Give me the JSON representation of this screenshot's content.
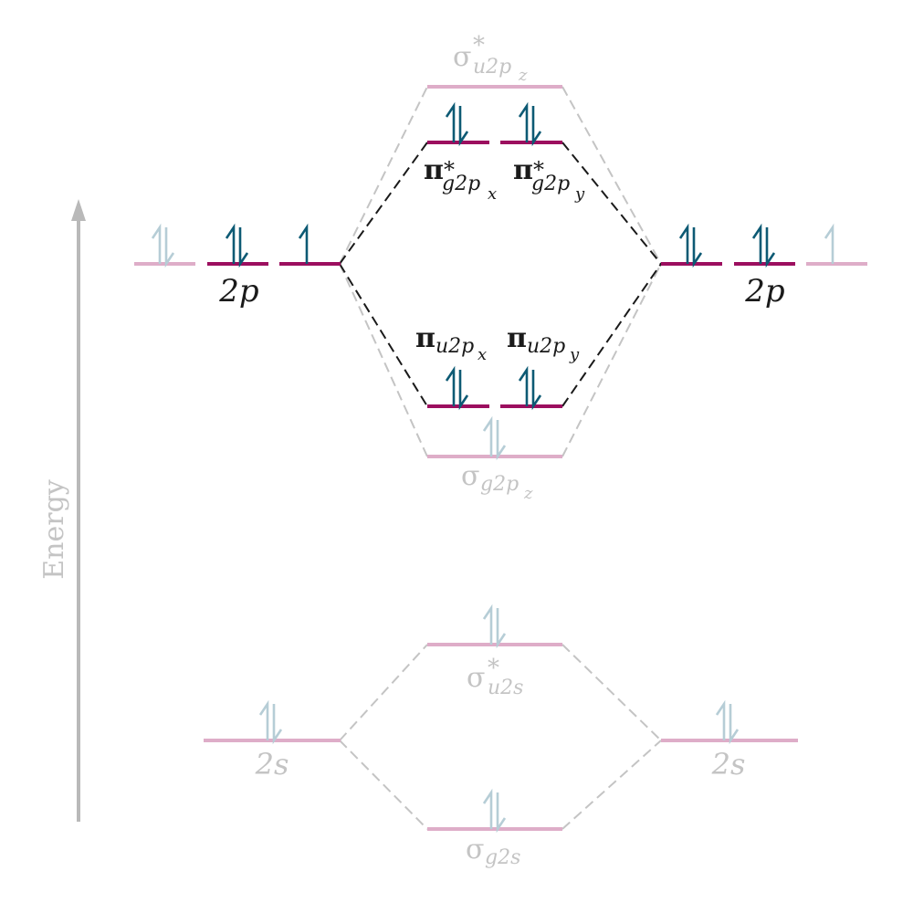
{
  "colors": {
    "level_active": "#9c0f5f",
    "level_faded": "#deadc8",
    "arrow_active": "#0d5a74",
    "arrow_faded": "#b6cdd6",
    "line_active": "#1a1a1a",
    "line_faded": "#c4c4c4",
    "text_active": "#1a1a1a",
    "text_faded": "#c4c4c4",
    "axis": "#b9b9b9"
  },
  "axis": {
    "label": "Energy"
  },
  "atomic_labels": {
    "left_2p": "2p",
    "right_2p": "2p",
    "left_2s": "2s",
    "right_2s": "2s"
  },
  "mo_labels": {
    "sigma_star_2pz": {
      "greek": "σ",
      "star": "*",
      "sub": "u2p",
      "subsub": "z"
    },
    "pi_star_2px": {
      "greek": "π",
      "star": "*",
      "sub": "g2p",
      "subsub": "x"
    },
    "pi_star_2py": {
      "greek": "π",
      "star": "*",
      "sub": "g2p",
      "subsub": "y"
    },
    "pi_2px": {
      "greek": "π",
      "sub": "u2p",
      "subsub": "x"
    },
    "pi_2py": {
      "greek": "π",
      "sub": "u2p",
      "subsub": "y"
    },
    "sigma_2pz": {
      "greek": "σ",
      "sub": "g2p",
      "subsub": "z"
    },
    "sigma_star_2s": {
      "greek": "σ",
      "star": "*",
      "sub": "u2s"
    },
    "sigma_2s": {
      "greek": "σ",
      "sub": "g2s"
    }
  },
  "occupancy": {
    "left_2p": [
      2,
      2,
      1
    ],
    "right_2p": [
      2,
      2,
      1
    ],
    "left_2s": 2,
    "right_2s": 2,
    "sigma_star_2pz": 0,
    "pi_star_2px": 2,
    "pi_star_2py": 2,
    "pi_2px": 2,
    "pi_2py": 2,
    "sigma_2pz": 2,
    "sigma_star_2s": 2,
    "sigma_2s": 2
  }
}
